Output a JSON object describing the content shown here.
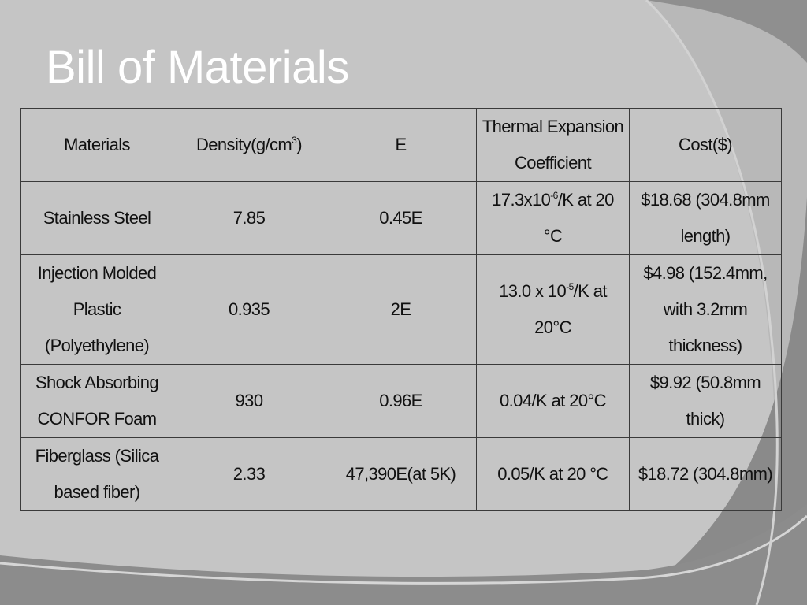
{
  "slide": {
    "title": "Bill of Materials"
  },
  "table": {
    "headers": [
      {
        "text": "Materials"
      },
      {
        "pre": "Density(g/cm",
        "sup": "3",
        "post": ")"
      },
      {
        "text": "E"
      },
      {
        "text": "Thermal Expansion Coefficient"
      },
      {
        "text": "Cost($)"
      }
    ],
    "rows": [
      {
        "material": "Stainless Steel",
        "density": "7.85",
        "e": "0.45E",
        "thermal": {
          "pre": "17.3x10",
          "sup": "-6",
          "post": "/K at 20 °C"
        },
        "cost": "$18.68 (304.8mm length)"
      },
      {
        "material": "Injection Molded Plastic (Polyethylene)",
        "density": "0.935",
        "e": "2E",
        "thermal": {
          "pre": "13.0 x 10",
          "sup": "-5",
          "post": "/K at 20°C"
        },
        "cost": "$4.98 (152.4mm, with 3.2mm thickness)"
      },
      {
        "material": "Shock Absorbing CONFOR Foam",
        "density": "930",
        "e": "0.96E",
        "thermal": {
          "pre": "0.04/K at 20°C",
          "sup": "",
          "post": ""
        },
        "cost": "$9.92 (50.8mm thick)"
      },
      {
        "material": "Fiberglass (Silica based fiber)",
        "density": "2.33",
        "e": "47,390E(at 5K)",
        "thermal": {
          "pre": "0.05/K at 20 °C",
          "sup": "",
          "post": ""
        },
        "cost": "$18.72 (304.8mm)"
      }
    ]
  }
}
